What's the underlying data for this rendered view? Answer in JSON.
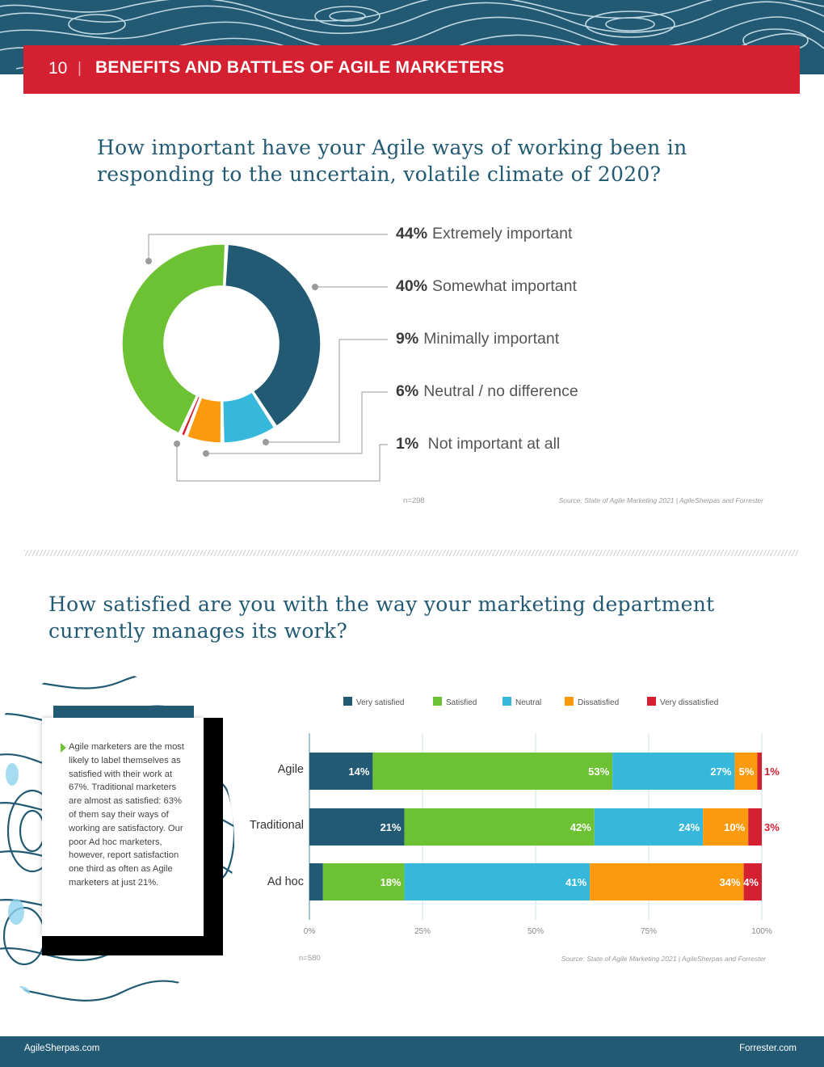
{
  "header": {
    "page_number": "10",
    "separator": "|",
    "section_title": "BENEFITS AND BATTLES OF AGILE MARKETERS"
  },
  "question1": {
    "title": "How important have your Agile ways of working been in responding to the uncertain, volatile climate of 2020?",
    "n": "n=298",
    "source": "Source: State of Agile Marketing 2021 | AgileSherpas and Forrester",
    "legend": [
      {
        "pct": "44%",
        "label": "Extremely important"
      },
      {
        "pct": "40%",
        "label": "Somewhat important"
      },
      {
        "pct": "9%",
        "label": "Minimally important"
      },
      {
        "pct": "6%",
        "label": "Neutral / no difference"
      },
      {
        "pct": "1%",
        "label": " Not important at all"
      }
    ]
  },
  "question2": {
    "title": "How satisfied are you with the way your marketing department currently manages its work?",
    "n": "n=580",
    "source": "Source: State of Agile Marketing 2021 | AgileSherpas and Forrester",
    "callout": "Agile marketers are the most likely to label themselves as satisfied with their work at 67%. Traditional marketers are almost as satisfied: 63% of them say their ways of working are satisfactory. Our poor Ad hoc marketers, however, report satisfaction one third as often as Agile marketers at just 21%."
  },
  "colors": {
    "navy": "#225a74",
    "green": "#6dc234",
    "cyan": "#35b8dc",
    "orange": "#fb9a0c",
    "red": "#d42030"
  },
  "chart_data": [
    {
      "type": "pie",
      "title": "How important have your Agile ways of working been in responding to the uncertain, volatile climate of 2020?",
      "categories": [
        "Extremely important",
        "Somewhat important",
        "Minimally important",
        "Neutral / no difference",
        "Not important at all"
      ],
      "values": [
        44,
        40,
        9,
        6,
        1
      ],
      "series_colors": [
        "#6dc234",
        "#225a74",
        "#35b8dc",
        "#fb9a0c",
        "#d42030"
      ],
      "donut": true
    },
    {
      "type": "bar",
      "orientation": "horizontal",
      "stacked": true,
      "title": "How satisfied are you with the way your marketing department currently manages its work?",
      "categories": [
        "Agile",
        "Traditional",
        "Ad hoc"
      ],
      "xlim": [
        0,
        100
      ],
      "x_ticks": [
        "0%",
        "25%",
        "50%",
        "75%",
        "100%"
      ],
      "legend_position": "top",
      "grid": true,
      "series": [
        {
          "name": "Very satisfied",
          "color": "#225a74",
          "values": [
            14,
            21,
            3
          ]
        },
        {
          "name": "Satisfied",
          "color": "#6dc234",
          "values": [
            53,
            42,
            18
          ]
        },
        {
          "name": "Neutral",
          "color": "#35b8dc",
          "values": [
            27,
            24,
            41
          ]
        },
        {
          "name": "Dissatisfied",
          "color": "#fb9a0c",
          "values": [
            5,
            10,
            34
          ]
        },
        {
          "name": "Very dissatisfied",
          "color": "#d42030",
          "values": [
            1,
            3,
            4
          ]
        }
      ]
    }
  ],
  "footer": {
    "left": "AgileSherpas.com",
    "right": "Forrester.com"
  }
}
